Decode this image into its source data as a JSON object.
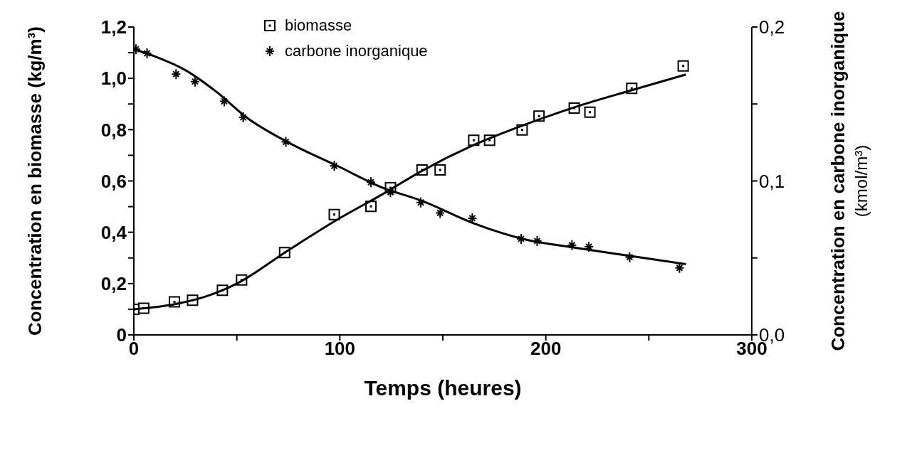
{
  "chart_data": {
    "type": "scatter",
    "xlabel": "Temps (heures)",
    "ylabel": "Concentration en biomasse (kg/m³)",
    "y2label": "Concentration en carbone inorganique (kmol/m³)",
    "legend": "top",
    "xlim": [
      0,
      300
    ],
    "xticks": [
      0,
      {
        "value": 50,
        "label": null
      },
      100,
      {
        "value": 150,
        "label": null
      },
      200,
      {
        "value": 250,
        "label": null
      },
      300
    ],
    "ylim": [
      0,
      1.2
    ],
    "yticks": [
      0,
      {
        "value": 0.1,
        "label": null
      },
      {
        "value": 0.2,
        "label": "0,2"
      },
      {
        "value": 0.3,
        "label": null
      },
      {
        "value": 0.4,
        "label": "0,4"
      },
      {
        "value": 0.5,
        "label": null
      },
      {
        "value": 0.6,
        "label": "0,6"
      },
      {
        "value": 0.7,
        "label": null
      },
      {
        "value": 0.8,
        "label": "0,8"
      },
      {
        "value": 0.9,
        "label": null
      },
      {
        "value": 1.0,
        "label": "1,0"
      },
      {
        "value": 1.1,
        "label": null
      },
      {
        "value": 1.2,
        "label": "1,2"
      }
    ],
    "y2lim": [
      0,
      0.2
    ],
    "y2ticks": [
      {
        "value": 0,
        "label": "0,0"
      },
      {
        "value": 0.05,
        "label": null
      },
      {
        "value": 0.1,
        "label": "0,1"
      },
      {
        "value": 0.15,
        "label": null
      },
      {
        "value": 0.2,
        "label": "0,2"
      }
    ],
    "series": [
      {
        "name": "biomasse",
        "marker": "square",
        "color": "#000000",
        "x": [
          0,
          4.8,
          19.7,
          28.5,
          43,
          52.3,
          73.2,
          97.3,
          115.1,
          124.6,
          139.9,
          148.7,
          165,
          172.7,
          188.5,
          196.7,
          213.8,
          221.4,
          241.7,
          266.7
        ],
        "values": [
          0.1,
          0.104,
          0.129,
          0.135,
          0.174,
          0.214,
          0.321,
          0.469,
          0.501,
          0.574,
          0.643,
          0.643,
          0.759,
          0.759,
          0.799,
          0.853,
          0.884,
          0.868,
          0.961,
          1.048
        ]
      },
      {
        "name": "carbone inorganique",
        "marker": "cross",
        "axis": "y2",
        "color": "#000000",
        "x": [
          1,
          6.4,
          20.5,
          29.7,
          43.9,
          53.1,
          73.8,
          97.3,
          115.1,
          124.6,
          139.3,
          148.7,
          164.3,
          188,
          195.8,
          212.7,
          220.9,
          240.7,
          264.9
        ],
        "values": [
          0.1856,
          0.1829,
          0.1694,
          0.1646,
          0.1517,
          0.1413,
          0.1254,
          0.1098,
          0.0992,
          0.0927,
          0.086,
          0.0792,
          0.0758,
          0.0624,
          0.061,
          0.0583,
          0.0573,
          0.0505,
          0.0435
        ]
      },
      {
        "type": "line",
        "marker": "none",
        "color": "#000000",
        "x": [
          0,
          20,
          35,
          50,
          75,
          100,
          120,
          140,
          165,
          190,
          215,
          240,
          268
        ],
        "values": [
          0.1,
          0.12,
          0.15,
          0.2,
          0.33,
          0.455,
          0.545,
          0.64,
          0.74,
          0.82,
          0.89,
          0.95,
          1.015
        ]
      },
      {
        "type": "line",
        "marker": "none",
        "axis": "y2",
        "color": "#000000",
        "x": [
          0,
          10,
          25,
          40,
          55,
          75,
          100,
          120,
          140,
          165,
          190,
          215,
          240,
          268
        ],
        "values": [
          0.1856,
          0.181,
          0.172,
          0.158,
          0.141,
          0.125,
          0.109,
          0.096,
          0.087,
          0.0725,
          0.062,
          0.0565,
          0.0515,
          0.046
        ]
      }
    ]
  }
}
